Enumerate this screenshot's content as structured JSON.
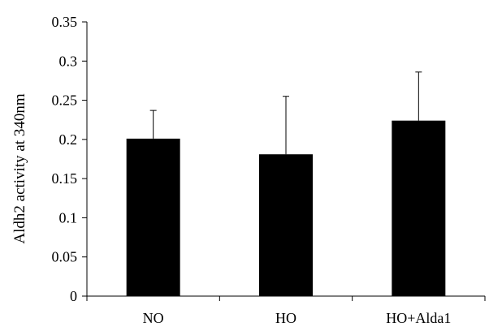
{
  "chart_data": {
    "type": "bar",
    "title": "",
    "xlabel": "",
    "ylabel": "Aldh2 activity at 340nm",
    "categories": [
      "NO",
      "HO",
      "HO+Alda1"
    ],
    "values": [
      0.201,
      0.181,
      0.224
    ],
    "error_plus": [
      0.036,
      0.074,
      0.062
    ],
    "ylim": [
      0,
      0.35
    ],
    "yticks": [
      {
        "value": 0,
        "label": "0"
      },
      {
        "value": 0.05,
        "label": "0.05"
      },
      {
        "value": 0.1,
        "label": "0.1"
      },
      {
        "value": 0.15,
        "label": "0.15"
      },
      {
        "value": 0.2,
        "label": "0.2"
      },
      {
        "value": 0.25,
        "label": "0.25"
      },
      {
        "value": 0.3,
        "label": "0.3"
      },
      {
        "value": 0.35,
        "label": "0.35"
      }
    ],
    "grid": false,
    "legend": "none",
    "colors": {
      "bar": "#000000",
      "axis": "#000000",
      "error_bar": "#000000"
    }
  }
}
